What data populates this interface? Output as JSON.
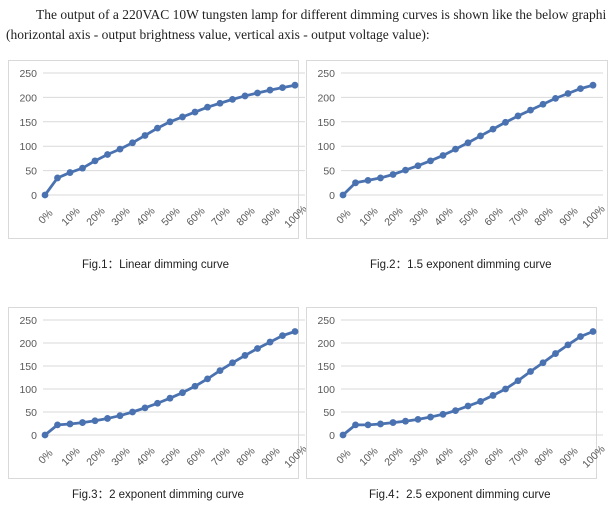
{
  "intro": {
    "line1": "The output of a 220VAC 10W tungsten lamp for different dimming curves is shown like the below graphi",
    "line2": "(horizontal axis - output brightness value, vertical axis - output voltage value):"
  },
  "colors": {
    "series": "#4a72b0",
    "grid": "#d9d9d9",
    "tick_text": "#595959"
  },
  "chart_data": [
    {
      "type": "line",
      "caption": "Fig.1：Linear dimming curve",
      "x": [
        "0%",
        "",
        "10%",
        "",
        "20%",
        "",
        "30%",
        "",
        "40%",
        "",
        "50%",
        "",
        "60%",
        "",
        "70%",
        "",
        "80%",
        "",
        "90%",
        "",
        "100%"
      ],
      "yticks": [
        0,
        50,
        100,
        150,
        200,
        250
      ],
      "ylim": [
        0,
        250
      ],
      "series": [
        {
          "values": [
            0,
            35,
            46,
            55,
            70,
            83,
            94,
            107,
            122,
            137,
            150,
            160,
            170,
            180,
            188,
            196,
            203,
            209,
            215,
            220,
            225
          ]
        }
      ]
    },
    {
      "type": "line",
      "caption": "Fig.2：1.5 exponent dimming curve",
      "x": [
        "0%",
        "",
        "10%",
        "",
        "20%",
        "",
        "30%",
        "",
        "40%",
        "",
        "50%",
        "",
        "60%",
        "",
        "70%",
        "",
        "80%",
        "",
        "90%",
        "",
        "100%"
      ],
      "yticks": [
        0,
        50,
        100,
        150,
        200,
        250
      ],
      "ylim": [
        0,
        250
      ],
      "series": [
        {
          "values": [
            0,
            25,
            30,
            35,
            42,
            51,
            60,
            70,
            81,
            94,
            107,
            121,
            135,
            149,
            162,
            174,
            186,
            198,
            208,
            218,
            225
          ]
        }
      ]
    },
    {
      "type": "line",
      "caption": "Fig.3：2 exponent dimming curve",
      "x": [
        "0%",
        "",
        "10%",
        "",
        "20%",
        "",
        "30%",
        "",
        "40%",
        "",
        "50%",
        "",
        "60%",
        "",
        "70%",
        "",
        "80%",
        "",
        "90%",
        "",
        "100%"
      ],
      "yticks": [
        0,
        50,
        100,
        150,
        200,
        250
      ],
      "ylim": [
        0,
        250
      ],
      "series": [
        {
          "values": [
            0,
            22,
            24,
            27,
            31,
            36,
            42,
            50,
            59,
            69,
            80,
            92,
            106,
            122,
            140,
            157,
            173,
            188,
            202,
            216,
            225
          ]
        }
      ]
    },
    {
      "type": "line",
      "caption": "Fig.4：2.5 exponent dimming curve",
      "x": [
        "0%",
        "",
        "10%",
        "",
        "20%",
        "",
        "30%",
        "",
        "40%",
        "",
        "50%",
        "",
        "60%",
        "",
        "70%",
        "",
        "80%",
        "",
        "90%",
        "",
        "100%"
      ],
      "yticks": [
        0,
        50,
        100,
        150,
        200,
        250
      ],
      "ylim": [
        0,
        250
      ],
      "series": [
        {
          "values": [
            0,
            22,
            22,
            24,
            27,
            30,
            34,
            39,
            45,
            53,
            63,
            73,
            86,
            100,
            118,
            138,
            157,
            177,
            196,
            214,
            225
          ]
        }
      ]
    }
  ]
}
